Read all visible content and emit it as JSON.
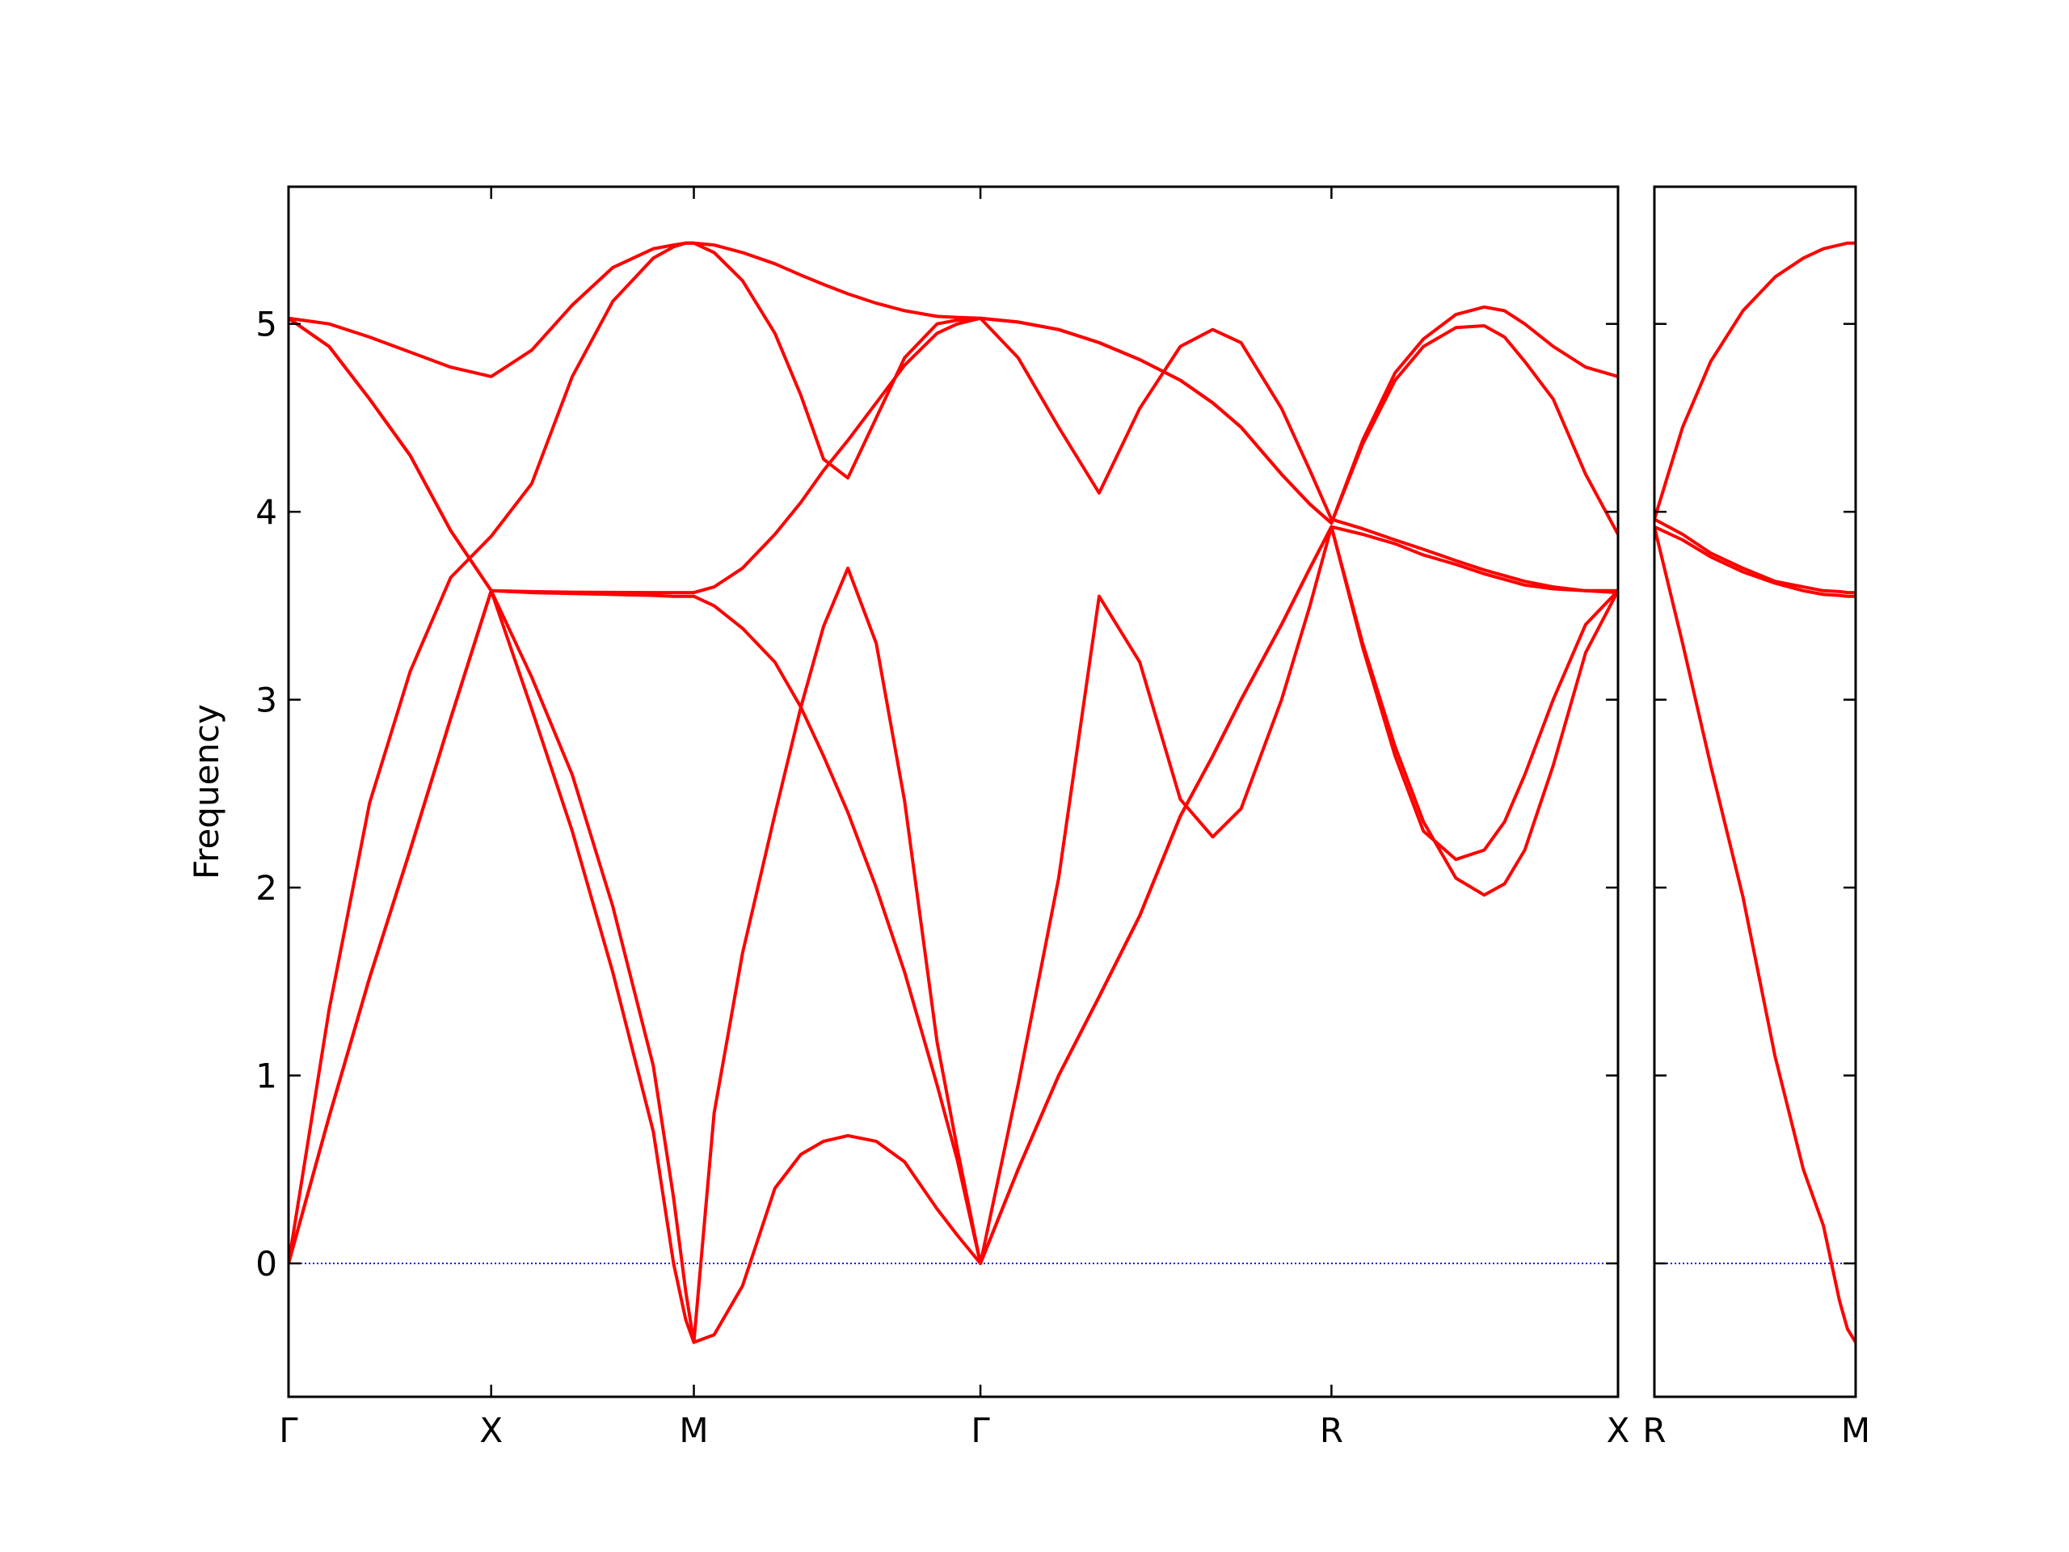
{
  "chart_data": [
    {
      "type": "line",
      "ylabel": "Frequency",
      "color": "#ff0000",
      "grid": false,
      "ylim": [
        -0.71,
        5.73
      ],
      "yticks": [
        0,
        1,
        2,
        3,
        4,
        5
      ],
      "show_ytick_labels": true,
      "xlim": [
        0,
        3.28
      ],
      "xticks": [
        {
          "value": 0,
          "label": "Γ"
        },
        {
          "value": 0.5,
          "label": "X"
        },
        {
          "value": 1.0,
          "label": "M"
        },
        {
          "value": 1.707,
          "label": "Γ"
        },
        {
          "value": 2.573,
          "label": "R"
        },
        {
          "value": 3.28,
          "label": "X"
        }
      ],
      "hline": {
        "value": 0,
        "color": "#0000ff",
        "style": "dotted"
      },
      "x": [
        0,
        0.1,
        0.2,
        0.3,
        0.4,
        0.5,
        0.6,
        0.7,
        0.8,
        0.9,
        0.95,
        0.98,
        1.0,
        1.05,
        1.12,
        1.2,
        1.264,
        1.32,
        1.38,
        1.45,
        1.52,
        1.6,
        1.65,
        1.707,
        1.8,
        1.9,
        2.0,
        2.1,
        2.2,
        2.28,
        2.35,
        2.45,
        2.52,
        2.573,
        2.65,
        2.73,
        2.8,
        2.88,
        2.95,
        3.0,
        3.05,
        3.12,
        3.2,
        3.28
      ],
      "series": [
        {
          "values": [
            0,
            0.78,
            1.52,
            2.2,
            2.9,
            3.58,
            2.95,
            2.3,
            1.55,
            0.7,
            0.0,
            -0.3,
            -0.42,
            0.8,
            1.65,
            2.39,
            2.96,
            3.39,
            3.7,
            3.3,
            2.46,
            1.18,
            0.61,
            0,
            0.95,
            2.05,
            3.55,
            3.2,
            2.47,
            2.27,
            2.42,
            3.0,
            3.5,
            3.92,
            3.3,
            2.75,
            2.35,
            2.05,
            1.96,
            2.02,
            2.2,
            2.65,
            3.25,
            3.58
          ]
        },
        {
          "values": [
            0,
            0.78,
            1.52,
            2.2,
            2.9,
            3.58,
            3.57,
            3.565,
            3.56,
            3.555,
            3.55,
            3.55,
            3.55,
            3.5,
            3.38,
            3.2,
            2.96,
            2.7,
            2.4,
            2.0,
            1.55,
            0.95,
            0.55,
            0,
            0.5,
            1.0,
            1.42,
            1.85,
            2.38,
            2.7,
            3.0,
            3.4,
            3.7,
            3.92,
            3.28,
            2.7,
            2.3,
            2.15,
            2.2,
            2.35,
            2.6,
            3.0,
            3.4,
            3.58
          ]
        },
        {
          "values": [
            0,
            1.35,
            2.45,
            3.15,
            3.65,
            3.87,
            4.15,
            4.72,
            5.12,
            5.35,
            5.41,
            5.43,
            5.43,
            5.38,
            5.23,
            4.95,
            4.62,
            4.28,
            4.18,
            4.5,
            4.82,
            5.0,
            5.02,
            5.03,
            4.82,
            4.45,
            4.1,
            4.55,
            4.88,
            4.97,
            4.9,
            4.55,
            4.22,
            3.96,
            3.91,
            3.85,
            3.8,
            3.74,
            3.69,
            3.66,
            3.63,
            3.6,
            3.58,
            3.58
          ]
        },
        {
          "values": [
            5.03,
            4.88,
            4.6,
            4.3,
            3.9,
            3.58,
            3.12,
            2.6,
            1.9,
            1.05,
            0.35,
            -0.15,
            -0.42,
            -0.38,
            -0.12,
            0.4,
            0.58,
            0.65,
            0.68,
            0.65,
            0.54,
            0.29,
            0.15,
            0,
            0.5,
            1.0,
            1.42,
            1.85,
            2.38,
            2.7,
            3.0,
            3.4,
            3.7,
            3.92,
            3.88,
            3.83,
            3.77,
            3.72,
            3.67,
            3.64,
            3.61,
            3.59,
            3.58,
            3.57
          ]
        },
        {
          "values": [
            5.03,
            4.88,
            4.6,
            4.3,
            3.9,
            3.58,
            3.575,
            3.572,
            3.571,
            3.57,
            3.57,
            3.57,
            3.57,
            3.6,
            3.7,
            3.88,
            4.05,
            4.22,
            4.38,
            4.58,
            4.78,
            4.95,
            5.0,
            5.03,
            5.01,
            4.97,
            4.9,
            4.81,
            4.7,
            4.58,
            4.45,
            4.2,
            4.04,
            3.94,
            4.38,
            4.74,
            4.92,
            5.05,
            5.09,
            5.07,
            5.0,
            4.88,
            4.77,
            4.72
          ]
        },
        {
          "values": [
            5.03,
            5.0,
            4.93,
            4.85,
            4.77,
            4.72,
            4.86,
            5.1,
            5.3,
            5.4,
            5.42,
            5.43,
            5.43,
            5.42,
            5.38,
            5.32,
            5.26,
            5.21,
            5.16,
            5.11,
            5.07,
            5.04,
            5.035,
            5.03,
            5.01,
            4.97,
            4.9,
            4.81,
            4.7,
            4.58,
            4.45,
            4.2,
            4.04,
            3.94,
            4.36,
            4.7,
            4.88,
            4.98,
            4.99,
            4.93,
            4.8,
            4.6,
            4.2,
            3.88
          ]
        }
      ]
    },
    {
      "type": "line",
      "color": "#ff0000",
      "grid": false,
      "ylim": [
        -0.71,
        5.73
      ],
      "yticks": [
        0,
        1,
        2,
        3,
        4,
        5
      ],
      "show_ytick_labels": false,
      "xlim": [
        3.28,
        3.78
      ],
      "xticks": [
        {
          "value": 3.28,
          "label": "R"
        },
        {
          "value": 3.78,
          "label": "M"
        }
      ],
      "hline": {
        "value": 0,
        "color": "#0000ff",
        "style": "dotted"
      },
      "x": [
        3.28,
        3.35,
        3.42,
        3.5,
        3.58,
        3.65,
        3.7,
        3.74,
        3.76,
        3.78
      ],
      "series": [
        {
          "values": [
            3.96,
            4.45,
            4.8,
            5.07,
            5.25,
            5.35,
            5.4,
            5.42,
            5.43,
            5.43
          ]
        },
        {
          "values": [
            3.96,
            3.88,
            3.78,
            3.7,
            3.63,
            3.6,
            3.58,
            3.575,
            3.57,
            3.57
          ]
        },
        {
          "values": [
            3.92,
            3.85,
            3.76,
            3.68,
            3.62,
            3.58,
            3.56,
            3.555,
            3.55,
            3.55
          ]
        },
        {
          "values": [
            3.92,
            3.3,
            2.65,
            1.95,
            1.1,
            0.5,
            0.2,
            -0.2,
            -0.35,
            -0.42
          ]
        }
      ]
    }
  ]
}
